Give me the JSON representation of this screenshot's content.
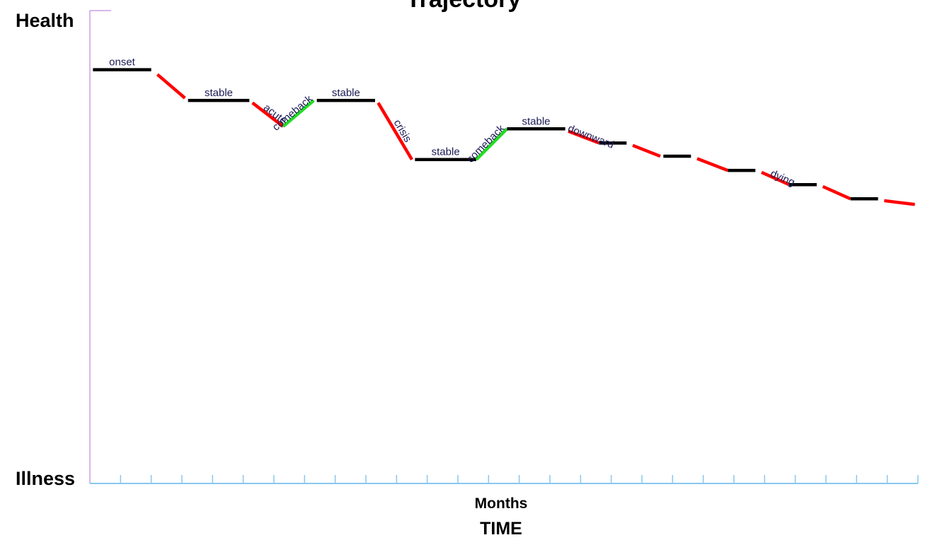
{
  "chart_data": {
    "type": "line",
    "title": "Trajectory",
    "y_top_label": "Health",
    "y_bottom_label": "Illness",
    "xlabel": "Months",
    "xlabel_secondary": "TIME",
    "x_range": [
      0,
      27
    ],
    "y_range": [
      0,
      100
    ],
    "x_tick_count": 27,
    "colors": {
      "stable": "#000000",
      "decline": "#ff0000",
      "comeback": "#22dd22",
      "axis": "#88c8f0",
      "y_axis": "#c9a0e6",
      "label": "#1a1a55"
    },
    "segments": [
      {
        "kind": "stable",
        "label": "onset",
        "x0": 0.1,
        "y0": 87.5,
        "x1": 2.0,
        "y1": 87.5
      },
      {
        "kind": "decline",
        "label": "",
        "x0": 2.2,
        "y0": 86.5,
        "x1": 3.1,
        "y1": 81.5
      },
      {
        "kind": "stable",
        "label": "stable",
        "x0": 3.2,
        "y0": 81.0,
        "x1": 5.2,
        "y1": 81.0
      },
      {
        "kind": "decline",
        "label": "acute",
        "x0": 5.3,
        "y0": 80.5,
        "x1": 6.3,
        "y1": 75.5
      },
      {
        "kind": "comeback",
        "label": "comeback",
        "x0": 6.3,
        "y0": 75.5,
        "x1": 7.3,
        "y1": 81.0
      },
      {
        "kind": "stable",
        "label": "stable",
        "x0": 7.4,
        "y0": 81.0,
        "x1": 9.3,
        "y1": 81.0
      },
      {
        "kind": "decline",
        "label": "crisis",
        "x0": 9.4,
        "y0": 80.5,
        "x1": 10.5,
        "y1": 68.5
      },
      {
        "kind": "stable",
        "label": "stable",
        "x0": 10.6,
        "y0": 68.5,
        "x1": 12.6,
        "y1": 68.5
      },
      {
        "kind": "comeback",
        "label": "comeback",
        "x0": 12.6,
        "y0": 68.5,
        "x1": 13.6,
        "y1": 75.0
      },
      {
        "kind": "stable",
        "label": "stable",
        "x0": 13.6,
        "y0": 75.0,
        "x1": 15.5,
        "y1": 75.0
      },
      {
        "kind": "decline",
        "label": "downward",
        "x0": 15.6,
        "y0": 74.5,
        "x1": 16.6,
        "y1": 72.0
      },
      {
        "kind": "stable",
        "label": "",
        "x0": 16.6,
        "y0": 72.0,
        "x1": 17.5,
        "y1": 72.0
      },
      {
        "kind": "decline",
        "label": "",
        "x0": 17.7,
        "y0": 71.5,
        "x1": 18.6,
        "y1": 69.2
      },
      {
        "kind": "stable",
        "label": "",
        "x0": 18.7,
        "y0": 69.2,
        "x1": 19.6,
        "y1": 69.2
      },
      {
        "kind": "decline",
        "label": "",
        "x0": 19.8,
        "y0": 68.7,
        "x1": 20.8,
        "y1": 66.2
      },
      {
        "kind": "stable",
        "label": "",
        "x0": 20.8,
        "y0": 66.2,
        "x1": 21.7,
        "y1": 66.2
      },
      {
        "kind": "decline",
        "label": "dying",
        "x0": 21.9,
        "y0": 65.8,
        "x1": 22.8,
        "y1": 63.2
      },
      {
        "kind": "stable",
        "label": "",
        "x0": 22.8,
        "y0": 63.2,
        "x1": 23.7,
        "y1": 63.2
      },
      {
        "kind": "decline",
        "label": "",
        "x0": 23.9,
        "y0": 62.8,
        "x1": 24.8,
        "y1": 60.2
      },
      {
        "kind": "stable",
        "label": "",
        "x0": 24.8,
        "y0": 60.2,
        "x1": 25.7,
        "y1": 60.2
      },
      {
        "kind": "decline",
        "label": "",
        "x0": 25.9,
        "y0": 59.8,
        "x1": 26.9,
        "y1": 59.0
      }
    ]
  }
}
